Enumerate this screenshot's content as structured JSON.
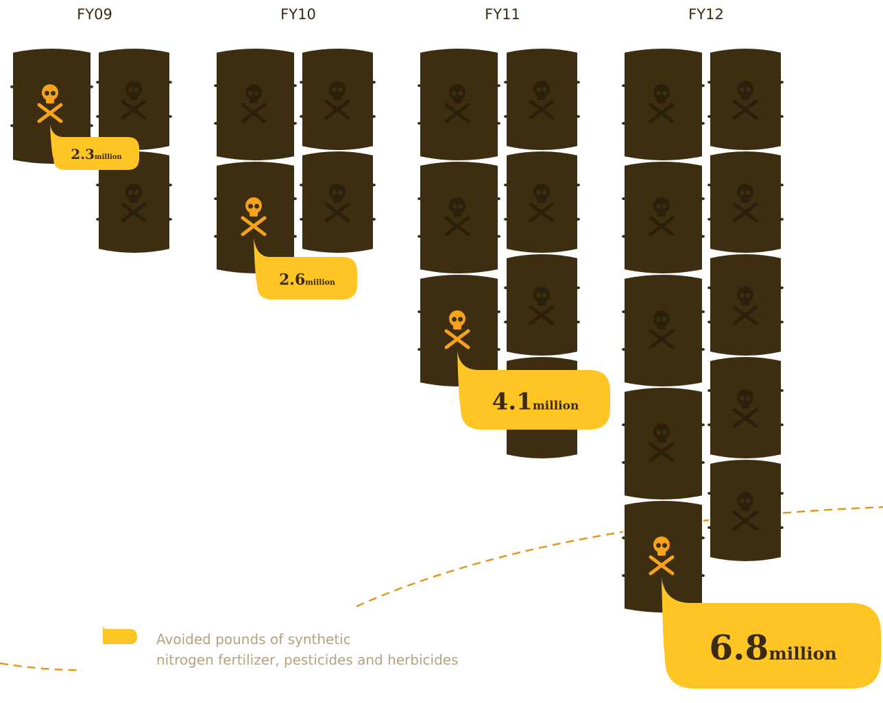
{
  "chart_data": {
    "type": "pictogram",
    "categories": [
      "FY09",
      "FY10",
      "FY11",
      "FY12"
    ],
    "values": [
      2.3,
      2.6,
      4.1,
      6.8
    ],
    "unit": "million",
    "legend": "Avoided pounds of synthetic nitrogen fertilizer, pesticides and herbicides",
    "color": "#3d2e12",
    "highlight_color": "#f7a21b",
    "label_color": "#fec524"
  }
}
